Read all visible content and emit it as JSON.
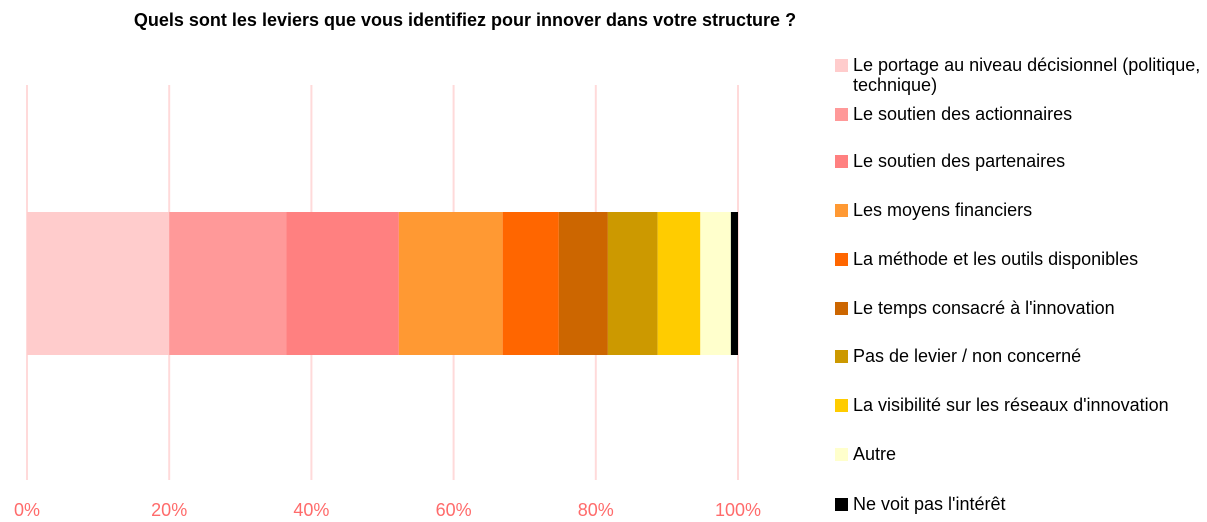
{
  "chart_data": {
    "type": "stacked-bar",
    "orientation": "horizontal",
    "title": "Quels sont les leviers que vous identifiez pour innover dans votre structure ?",
    "series": [
      {
        "name": "Le portage au niveau décisionnel (politique, technique)",
        "color": "#ffcccc",
        "values": [
          20
        ]
      },
      {
        "name": "Le soutien des actionnaires",
        "color": "#ff9999",
        "values": [
          16.5
        ]
      },
      {
        "name": "Le soutien des partenaires",
        "color": "#ff8080",
        "values": [
          15.8
        ]
      },
      {
        "name": "Les moyens financiers",
        "color": "#ff9933",
        "values": [
          14.6
        ]
      },
      {
        "name": "La méthode et les outils disponibles",
        "color": "#ff6600",
        "values": [
          7.9
        ]
      },
      {
        "name": "Le temps consacré à l'innovation",
        "color": "#cc6600",
        "values": [
          6.9
        ]
      },
      {
        "name": "Pas de levier / non concerné",
        "color": "#cc9900",
        "values": [
          7
        ]
      },
      {
        "name": "La visibilité sur les réseaux d'innovation",
        "color": "#ffcc00",
        "values": [
          6
        ]
      },
      {
        "name": "Autre",
        "color": "#ffffcc",
        "values": [
          4.3
        ]
      },
      {
        "name": "Ne voit pas l'intérêt",
        "color": "#000000",
        "values": [
          1
        ]
      }
    ],
    "xlim": [
      0,
      100
    ],
    "xticks": [
      {
        "value": 0,
        "label": "0%"
      },
      {
        "value": 20,
        "label": "20%"
      },
      {
        "value": 40,
        "label": "40%"
      },
      {
        "value": 60,
        "label": "60%"
      },
      {
        "value": 80,
        "label": "80%"
      },
      {
        "value": 100,
        "label": "100%"
      }
    ],
    "grid": true,
    "legend": "right"
  }
}
